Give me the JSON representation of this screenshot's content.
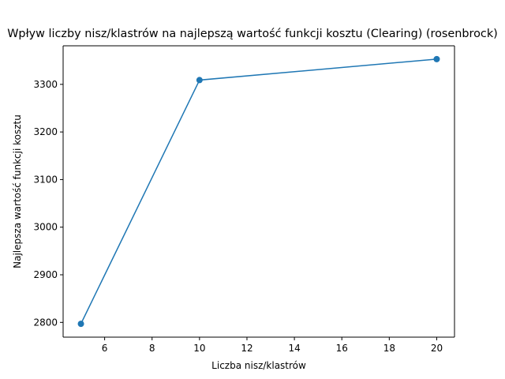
{
  "chart_data": {
    "type": "line",
    "title": "Wpływ liczby nisz/klastrów na najlepszą wartość funkcji kosztu (Clearing) (rosenbrock)",
    "xlabel": "Liczba nisz/klastrów",
    "ylabel": "Najlepsza wartość funkcji kosztu",
    "x": [
      5,
      10,
      20
    ],
    "series": [
      {
        "values": [
          2797,
          3309,
          3353
        ]
      }
    ],
    "xlim": [
      4.25,
      20.75
    ],
    "ylim": [
      2769,
      3381
    ],
    "xticks": [
      6,
      8,
      10,
      12,
      14,
      16,
      18,
      20
    ],
    "yticks": [
      2800,
      2900,
      3000,
      3100,
      3200,
      3300
    ],
    "grid": false,
    "legend": "none",
    "colors": {
      "line": "#1f77b4",
      "marker": "#1f77b4",
      "axes": "#000000"
    }
  }
}
